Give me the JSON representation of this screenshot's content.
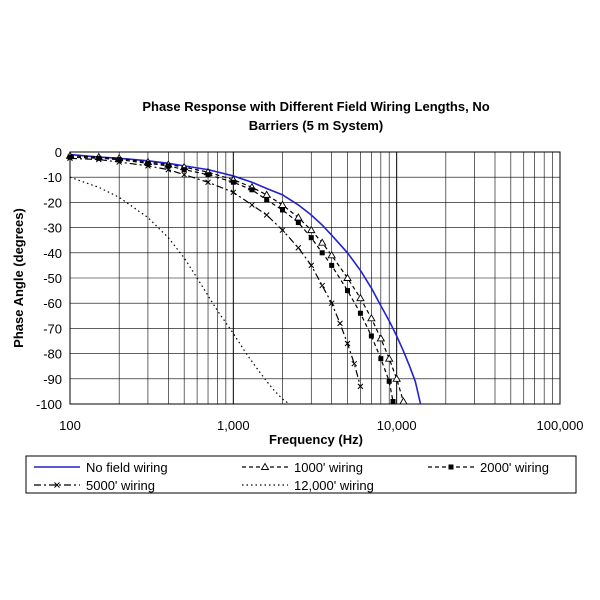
{
  "chart_data": {
    "type": "line",
    "title": "Phase Response with Different Field Wiring Lengths, No Barriers   (5 m System)",
    "title_lines": [
      "Phase Response with Different Field Wiring Lengths, No",
      "Barriers   (5 m System)"
    ],
    "xlabel": "Frequency (Hz)",
    "ylabel": "Phase Angle (degrees)",
    "x_scale": "log",
    "xlim": [
      100,
      100000
    ],
    "ylim": [
      -100,
      0
    ],
    "grid": true,
    "legend_position": "bottom",
    "x_ticks": [
      100,
      1000,
      10000,
      100000
    ],
    "x_tick_labels": [
      "100",
      "1,000",
      "10,000",
      "100,000"
    ],
    "y_ticks": [
      0,
      -10,
      -20,
      -30,
      -40,
      -50,
      -60,
      -70,
      -80,
      -90,
      -100
    ],
    "y_tick_labels": [
      "0",
      "-10",
      "-20",
      "-30",
      "-40",
      "-50",
      "-60",
      "-70",
      "-80",
      "-90",
      "-100"
    ],
    "series": [
      {
        "name": "No field wiring",
        "color": "#2222cc",
        "style": "solid",
        "marker": "none",
        "x": [
          100,
          150,
          200,
          300,
          400,
          500,
          700,
          1000,
          1300,
          1600,
          2000,
          2500,
          3000,
          3500,
          4000,
          5000,
          6000,
          7000,
          8000,
          9000,
          10000,
          11000,
          12000,
          13000,
          14000
        ],
        "y": [
          -1,
          -2,
          -2.5,
          -3.5,
          -4.5,
          -5.5,
          -7,
          -9.5,
          -12,
          -14.5,
          -17,
          -21,
          -25,
          -29,
          -33,
          -40,
          -47,
          -54,
          -61,
          -67,
          -73,
          -79,
          -85,
          -91,
          -100
        ]
      },
      {
        "name": "1000' wiring",
        "color": "#000000",
        "style": "dashed",
        "marker": "triangle",
        "x": [
          100,
          150,
          200,
          300,
          400,
          500,
          700,
          1000,
          1300,
          1600,
          2000,
          2500,
          3000,
          3500,
          4000,
          5000,
          6000,
          7000,
          8000,
          9000,
          10000,
          11000
        ],
        "y": [
          -1.5,
          -2,
          -2.5,
          -4,
          -5,
          -6,
          -8,
          -11,
          -14,
          -17,
          -21,
          -26,
          -31,
          -36,
          -41,
          -50,
          -58,
          -66,
          -74,
          -82,
          -90,
          -99
        ]
      },
      {
        "name": "2000' wiring",
        "color": "#000000",
        "style": "dashed",
        "marker": "square",
        "x": [
          100,
          150,
          200,
          300,
          400,
          500,
          700,
          1000,
          1300,
          1600,
          2000,
          2500,
          3000,
          3500,
          4000,
          5000,
          6000,
          7000,
          8000,
          9000,
          9500
        ],
        "y": [
          -2,
          -2.5,
          -3,
          -4.5,
          -5.5,
          -7,
          -9,
          -12,
          -15,
          -19,
          -23,
          -28,
          -34,
          -40,
          -45,
          -55,
          -64,
          -73,
          -82,
          -91,
          -99
        ]
      },
      {
        "name": "5000' wiring",
        "color": "#000000",
        "style": "dashdot",
        "marker": "x",
        "x": [
          100,
          150,
          200,
          300,
          400,
          500,
          700,
          1000,
          1300,
          1600,
          2000,
          2500,
          3000,
          3500,
          4000,
          4500,
          5000,
          5500,
          6000
        ],
        "y": [
          -2.5,
          -3,
          -4,
          -5.5,
          -7,
          -9,
          -12,
          -16,
          -21,
          -25,
          -31,
          -38,
          -45,
          -53,
          -60,
          -68,
          -76,
          -84,
          -93
        ]
      },
      {
        "name": "12,000' wiring",
        "color": "#000000",
        "style": "dotted",
        "marker": "none",
        "x": [
          100,
          150,
          200,
          300,
          400,
          500,
          600,
          700,
          800,
          1000,
          1200,
          1400,
          1600,
          1800,
          2000,
          2200
        ],
        "y": [
          -10,
          -14,
          -18,
          -26,
          -34,
          -42,
          -50,
          -57,
          -63,
          -72,
          -80,
          -86,
          -91,
          -95,
          -98,
          -100
        ]
      }
    ]
  }
}
